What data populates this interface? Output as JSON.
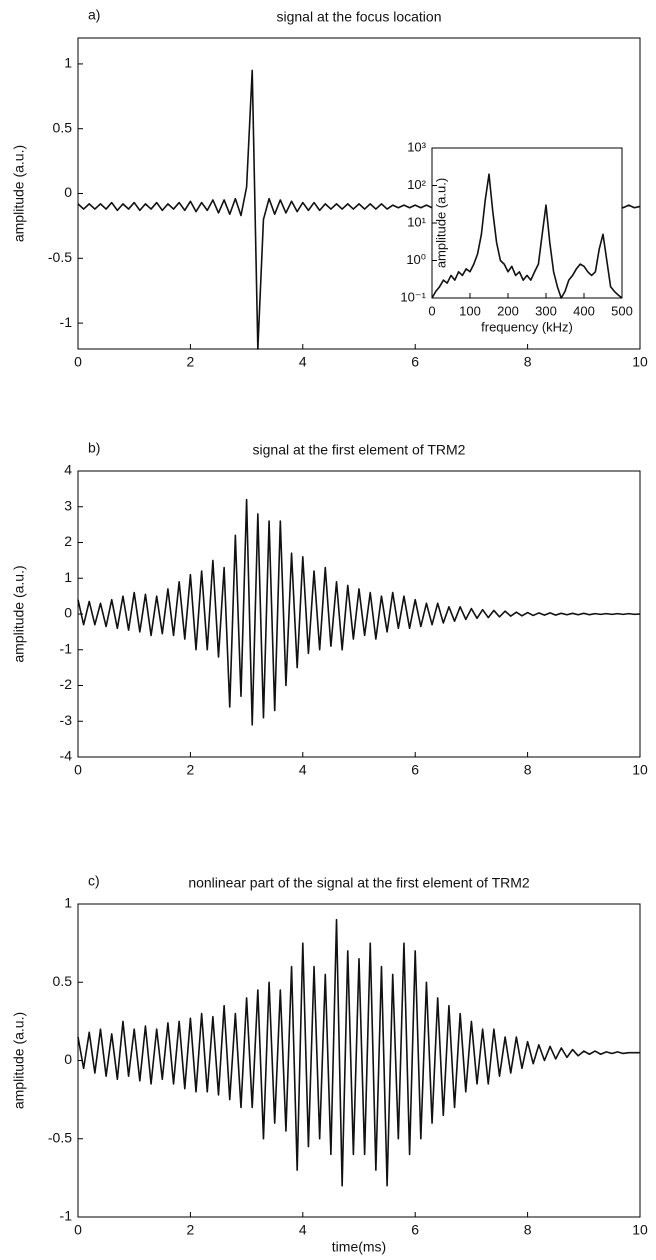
{
  "chart_data": [
    {
      "type": "line",
      "panel_label": "a)",
      "title": "signal at the focus location",
      "ylabel": "amplitude (a.u.)",
      "color": "#111111",
      "xlim": [
        0,
        10
      ],
      "ylim": [
        -1.2,
        1.2
      ],
      "xticks": [
        0,
        2,
        4,
        6,
        8,
        10
      ],
      "yticks": [
        -1,
        -0.5,
        0,
        0.5,
        1
      ],
      "x": [
        0,
        0.1,
        0.2,
        0.3,
        0.4,
        0.5,
        0.6,
        0.7,
        0.8,
        0.9,
        1,
        1.1,
        1.2,
        1.3,
        1.4,
        1.5,
        1.6,
        1.7,
        1.8,
        1.9,
        2,
        2.1,
        2.2,
        2.3,
        2.4,
        2.5,
        2.6,
        2.7,
        2.8,
        2.9,
        3,
        3.1,
        3.2,
        3.3,
        3.4,
        3.5,
        3.6,
        3.7,
        3.8,
        3.9,
        4,
        4.1,
        4.2,
        4.3,
        4.4,
        4.5,
        4.6,
        4.7,
        4.8,
        4.9,
        5,
        5.1,
        5.2,
        5.3,
        5.4,
        5.5,
        5.6,
        5.7,
        5.8,
        5.9,
        6,
        6.1,
        6.2,
        6.3,
        6.4,
        6.5,
        6.6,
        6.7,
        6.8,
        6.9,
        7,
        7.1,
        7.2,
        7.3,
        7.4,
        7.5,
        7.6,
        7.7,
        7.8,
        7.9,
        8,
        8.1,
        8.2,
        8.3,
        8.4,
        8.5,
        8.6,
        8.7,
        8.8,
        8.9,
        9,
        9.1,
        9.2,
        9.3,
        9.4,
        9.5,
        9.6,
        9.7,
        9.8,
        9.9,
        10
      ],
      "values": [
        -0.08,
        -0.12,
        -0.08,
        -0.12,
        -0.08,
        -0.12,
        -0.07,
        -0.13,
        -0.08,
        -0.12,
        -0.07,
        -0.13,
        -0.08,
        -0.12,
        -0.07,
        -0.13,
        -0.08,
        -0.12,
        -0.07,
        -0.13,
        -0.06,
        -0.14,
        -0.07,
        -0.13,
        -0.05,
        -0.15,
        -0.05,
        -0.16,
        -0.04,
        -0.17,
        0.05,
        0.95,
        -1.2,
        -0.2,
        -0.04,
        -0.16,
        -0.05,
        -0.15,
        -0.06,
        -0.14,
        -0.07,
        -0.13,
        -0.07,
        -0.13,
        -0.08,
        -0.12,
        -0.08,
        -0.12,
        -0.08,
        -0.12,
        -0.08,
        -0.12,
        -0.08,
        -0.12,
        -0.08,
        -0.12,
        -0.09,
        -0.11,
        -0.09,
        -0.11,
        -0.09,
        -0.11,
        -0.09,
        -0.11,
        -0.09,
        -0.11,
        -0.09,
        -0.11,
        -0.09,
        -0.11,
        -0.09,
        -0.11,
        -0.09,
        -0.11,
        -0.09,
        -0.11,
        -0.09,
        -0.11,
        -0.09,
        -0.11,
        -0.09,
        -0.11,
        -0.09,
        -0.11,
        -0.09,
        -0.11,
        -0.09,
        -0.11,
        -0.09,
        -0.11,
        -0.09,
        -0.11,
        -0.09,
        -0.11,
        -0.09,
        -0.11,
        -0.09,
        -0.11,
        -0.09,
        -0.11,
        -0.1
      ]
    },
    {
      "type": "line",
      "panel_label": "b)",
      "title": "signal at the first element of TRM2",
      "ylabel": "amplitude (a.u.)",
      "color": "#111111",
      "xlim": [
        0,
        10
      ],
      "ylim": [
        -4,
        4
      ],
      "xticks": [
        0,
        2,
        4,
        6,
        8,
        10
      ],
      "yticks": [
        -4,
        -3,
        -2,
        -1,
        0,
        1,
        2,
        3,
        4
      ],
      "x": [
        0,
        0.1,
        0.2,
        0.3,
        0.4,
        0.5,
        0.6,
        0.7,
        0.8,
        0.9,
        1,
        1.1,
        1.2,
        1.3,
        1.4,
        1.5,
        1.6,
        1.7,
        1.8,
        1.9,
        2,
        2.1,
        2.2,
        2.3,
        2.4,
        2.5,
        2.6,
        2.7,
        2.8,
        2.9,
        3,
        3.1,
        3.2,
        3.3,
        3.4,
        3.5,
        3.6,
        3.7,
        3.8,
        3.9,
        4,
        4.1,
        4.2,
        4.3,
        4.4,
        4.5,
        4.6,
        4.7,
        4.8,
        4.9,
        5,
        5.1,
        5.2,
        5.3,
        5.4,
        5.5,
        5.6,
        5.7,
        5.8,
        5.9,
        6,
        6.1,
        6.2,
        6.3,
        6.4,
        6.5,
        6.6,
        6.7,
        6.8,
        6.9,
        7,
        7.1,
        7.2,
        7.3,
        7.4,
        7.5,
        7.6,
        7.7,
        7.8,
        7.9,
        8,
        8.1,
        8.2,
        8.3,
        8.4,
        8.5,
        8.6,
        8.7,
        8.8,
        8.9,
        9,
        9.1,
        9.2,
        9.3,
        9.4,
        9.5,
        9.6,
        9.7,
        9.8,
        9.9,
        10
      ],
      "values": [
        0.4,
        -0.3,
        0.35,
        -0.3,
        0.3,
        -0.35,
        0.4,
        -0.4,
        0.5,
        -0.45,
        0.6,
        -0.5,
        0.55,
        -0.6,
        0.5,
        -0.55,
        0.7,
        -0.6,
        0.9,
        -0.7,
        1.1,
        -1.0,
        1.2,
        -1.0,
        1.5,
        -1.2,
        1.3,
        -2.6,
        2.2,
        -2.3,
        3.2,
        -3.1,
        2.8,
        -2.9,
        2.6,
        -2.7,
        2.6,
        -2.0,
        1.7,
        -1.5,
        1.6,
        -1.1,
        1.2,
        -1.0,
        1.3,
        -0.9,
        0.9,
        -1.0,
        0.8,
        -0.7,
        0.7,
        -0.6,
        0.6,
        -0.7,
        0.5,
        -0.5,
        0.6,
        -0.4,
        0.5,
        -0.4,
        0.4,
        -0.35,
        0.3,
        -0.3,
        0.3,
        -0.25,
        0.2,
        -0.2,
        0.2,
        -0.15,
        0.15,
        -0.12,
        0.12,
        -0.1,
        0.1,
        -0.08,
        0.08,
        -0.06,
        0.05,
        -0.05,
        0.04,
        -0.04,
        0.03,
        -0.03,
        0.03,
        -0.03,
        0.02,
        -0.02,
        0.02,
        -0.02,
        0.02,
        -0.02,
        0.01,
        -0.01,
        0.01,
        -0.01,
        0.01,
        -0.01,
        0.01,
        -0.01,
        0
      ]
    },
    {
      "type": "line",
      "panel_label": "c)",
      "title": "nonlinear part of the signal at the first element of TRM2",
      "ylabel": "amplitude (a.u.)",
      "xlabel": "time(ms)",
      "color": "#111111",
      "xlim": [
        0,
        10
      ],
      "ylim": [
        -1,
        1
      ],
      "xticks": [
        0,
        2,
        4,
        6,
        8,
        10
      ],
      "yticks": [
        -1,
        -0.5,
        0,
        0.5,
        1
      ],
      "x": [
        0,
        0.1,
        0.2,
        0.3,
        0.4,
        0.5,
        0.6,
        0.7,
        0.8,
        0.9,
        1,
        1.1,
        1.2,
        1.3,
        1.4,
        1.5,
        1.6,
        1.7,
        1.8,
        1.9,
        2,
        2.1,
        2.2,
        2.3,
        2.4,
        2.5,
        2.6,
        2.7,
        2.8,
        2.9,
        3,
        3.1,
        3.2,
        3.3,
        3.4,
        3.5,
        3.6,
        3.7,
        3.8,
        3.9,
        4,
        4.1,
        4.2,
        4.3,
        4.4,
        4.5,
        4.6,
        4.7,
        4.8,
        4.9,
        5,
        5.1,
        5.2,
        5.3,
        5.4,
        5.5,
        5.6,
        5.7,
        5.8,
        5.9,
        6,
        6.1,
        6.2,
        6.3,
        6.4,
        6.5,
        6.6,
        6.7,
        6.8,
        6.9,
        7,
        7.1,
        7.2,
        7.3,
        7.4,
        7.5,
        7.6,
        7.7,
        7.8,
        7.9,
        8,
        8.1,
        8.2,
        8.3,
        8.4,
        8.5,
        8.6,
        8.7,
        8.8,
        8.9,
        9,
        9.1,
        9.2,
        9.3,
        9.4,
        9.5,
        9.6,
        9.7,
        9.8,
        9.9,
        10
      ],
      "values": [
        0.15,
        -0.05,
        0.18,
        -0.08,
        0.2,
        -0.1,
        0.17,
        -0.12,
        0.25,
        -0.1,
        0.2,
        -0.13,
        0.22,
        -0.15,
        0.2,
        -0.12,
        0.24,
        -0.15,
        0.25,
        -0.18,
        0.27,
        -0.2,
        0.3,
        -0.2,
        0.28,
        -0.22,
        0.35,
        -0.25,
        0.3,
        -0.3,
        0.4,
        -0.3,
        0.45,
        -0.5,
        0.5,
        -0.4,
        0.45,
        -0.45,
        0.6,
        -0.7,
        0.75,
        -0.55,
        0.6,
        -0.5,
        0.55,
        -0.6,
        0.9,
        -0.8,
        0.7,
        -0.6,
        0.65,
        -0.6,
        0.75,
        -0.7,
        0.6,
        -0.8,
        0.55,
        -0.5,
        0.75,
        -0.6,
        0.7,
        -0.5,
        0.5,
        -0.4,
        0.4,
        -0.35,
        0.35,
        -0.3,
        0.3,
        -0.2,
        0.25,
        -0.15,
        0.2,
        -0.15,
        0.2,
        -0.1,
        0.15,
        -0.08,
        0.15,
        -0.05,
        0.12,
        -0.02,
        0.1,
        0,
        0.09,
        0.01,
        0.08,
        0.02,
        0.07,
        0.03,
        0.06,
        0.04,
        0.06,
        0.04,
        0.055,
        0.045,
        0.055,
        0.045,
        0.05,
        0.05,
        0.05
      ]
    },
    {
      "type": "line",
      "inset": true,
      "log_y": true,
      "ylabel": "amplitude (a.u.)",
      "xlabel": "frequency (kHz)",
      "color": "#111111",
      "xlim": [
        0,
        500
      ],
      "ylim": [
        0.1,
        1000
      ],
      "xticks": [
        0,
        100,
        200,
        300,
        400,
        500
      ],
      "yticks": [
        {
          "value": 0.1,
          "label": "10⁻¹"
        },
        {
          "value": 1,
          "label": "10⁰"
        },
        {
          "value": 10,
          "label": "10¹"
        },
        {
          "value": 100,
          "label": "10²"
        },
        {
          "value": 1000,
          "label": "10³"
        }
      ],
      "x": [
        0,
        10,
        20,
        30,
        40,
        50,
        60,
        70,
        80,
        90,
        100,
        110,
        120,
        130,
        140,
        150,
        160,
        170,
        180,
        190,
        200,
        210,
        220,
        230,
        240,
        250,
        260,
        270,
        280,
        290,
        300,
        310,
        320,
        330,
        340,
        350,
        360,
        370,
        380,
        390,
        400,
        410,
        420,
        430,
        440,
        450,
        460,
        470,
        480,
        490,
        500
      ],
      "values": [
        0.1,
        0.15,
        0.2,
        0.3,
        0.25,
        0.4,
        0.3,
        0.5,
        0.4,
        0.6,
        0.5,
        0.8,
        1.5,
        5,
        40,
        200,
        20,
        3,
        1,
        0.8,
        0.5,
        0.7,
        0.4,
        0.5,
        0.3,
        0.4,
        0.3,
        0.5,
        0.8,
        5,
        30,
        3,
        0.5,
        0.2,
        0.1,
        0.15,
        0.3,
        0.4,
        0.6,
        0.8,
        0.7,
        0.5,
        0.4,
        0.5,
        2,
        5,
        1,
        0.2,
        0.15,
        0.12,
        0.1
      ]
    }
  ]
}
